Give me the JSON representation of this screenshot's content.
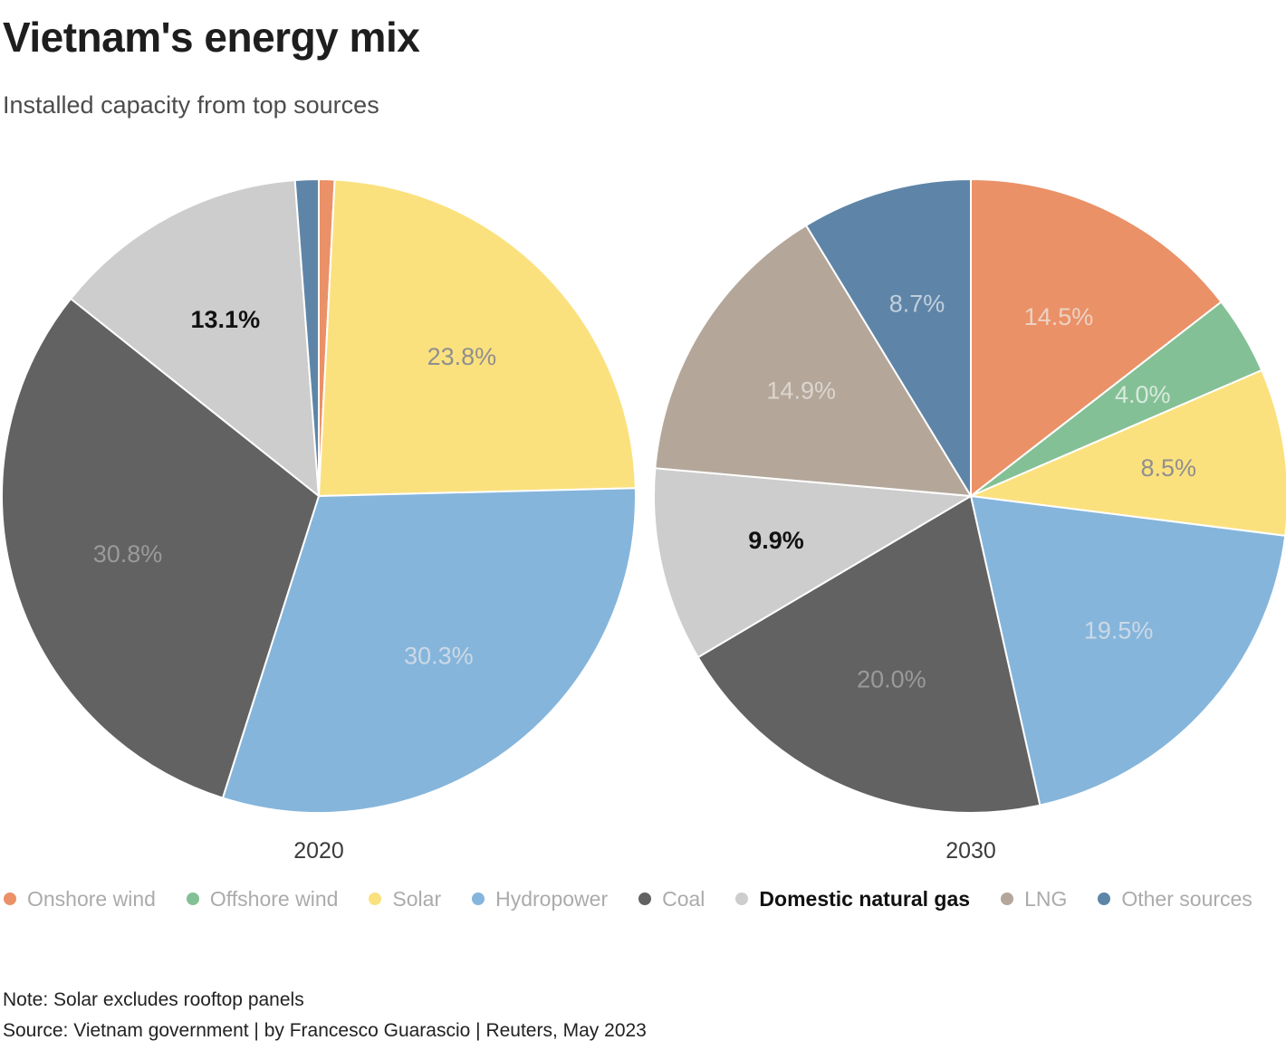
{
  "header": {
    "title": "Vietnam's energy mix",
    "subtitle": "Installed capacity from top sources"
  },
  "chart_data": [
    {
      "type": "pie",
      "title": "2020",
      "legend_position": "bottom",
      "slices": [
        {
          "name": "Onshore wind",
          "value": 0.8,
          "color": "#EA9168",
          "label": "",
          "label_color": "",
          "emphasis": false
        },
        {
          "name": "Solar",
          "value": 23.8,
          "color": "#FBE17E",
          "label": "23.8%",
          "label_color": "#8F8F8F",
          "emphasis": false
        },
        {
          "name": "Hydropower",
          "value": 30.3,
          "color": "#85B5DB",
          "label": "30.3%",
          "label_color": "#CCD9E6",
          "emphasis": false
        },
        {
          "name": "Coal",
          "value": 30.8,
          "color": "#626262",
          "label": "30.8%",
          "label_color": "#9A9A9A",
          "emphasis": false
        },
        {
          "name": "Domestic natural gas",
          "value": 13.1,
          "color": "#CDCDCD",
          "label": "13.1%",
          "label_color": "#111111",
          "emphasis": true
        },
        {
          "name": "Other sources",
          "value": 1.2,
          "color": "#5E85A8",
          "label": "",
          "label_color": "",
          "emphasis": false
        }
      ]
    },
    {
      "type": "pie",
      "title": "2030",
      "legend_position": "bottom",
      "slices": [
        {
          "name": "Onshore wind",
          "value": 14.5,
          "color": "#EA9168",
          "label": "14.5%",
          "label_color": "#EDD2C3",
          "emphasis": false
        },
        {
          "name": "Offshore wind",
          "value": 4.0,
          "color": "#84C095",
          "label": "4.0%",
          "label_color": "#D8EADD",
          "emphasis": false
        },
        {
          "name": "Solar",
          "value": 8.5,
          "color": "#FBE17E",
          "label": "8.5%",
          "label_color": "#8F8F8F",
          "emphasis": false
        },
        {
          "name": "Hydropower",
          "value": 19.5,
          "color": "#85B5DB",
          "label": "19.5%",
          "label_color": "#CCD9E6",
          "emphasis": false
        },
        {
          "name": "Coal",
          "value": 20.0,
          "color": "#626262",
          "label": "20.0%",
          "label_color": "#9A9A9A",
          "emphasis": false
        },
        {
          "name": "Domestic natural gas",
          "value": 9.9,
          "color": "#CDCDCD",
          "label": "9.9%",
          "label_color": "#111111",
          "emphasis": true
        },
        {
          "name": "LNG",
          "value": 14.9,
          "color": "#B4A79A",
          "label": "14.9%",
          "label_color": "#DCD5CE",
          "emphasis": false
        },
        {
          "name": "Other sources",
          "value": 8.7,
          "color": "#5E85A8",
          "label": "8.7%",
          "label_color": "#C2CFDB",
          "emphasis": false
        }
      ]
    }
  ],
  "legend": {
    "items": [
      {
        "label": "Onshore wind",
        "color": "#EA9168",
        "emphasis": false
      },
      {
        "label": "Offshore wind",
        "color": "#84C095",
        "emphasis": false
      },
      {
        "label": "Solar",
        "color": "#FBE17E",
        "emphasis": false
      },
      {
        "label": "Hydropower",
        "color": "#85B5DB",
        "emphasis": false
      },
      {
        "label": "Coal",
        "color": "#626262",
        "emphasis": false
      },
      {
        "label": "Domestic natural gas",
        "color": "#CDCDCD",
        "emphasis": true
      },
      {
        "label": "LNG",
        "color": "#B4A79A",
        "emphasis": false
      },
      {
        "label": "Other sources",
        "color": "#5E85A8",
        "emphasis": false
      }
    ]
  },
  "footer": {
    "note": "Note: Solar excludes rooftop panels",
    "source": "Source: Vietnam government | by Francesco Guarascio | Reuters, May 2023"
  }
}
